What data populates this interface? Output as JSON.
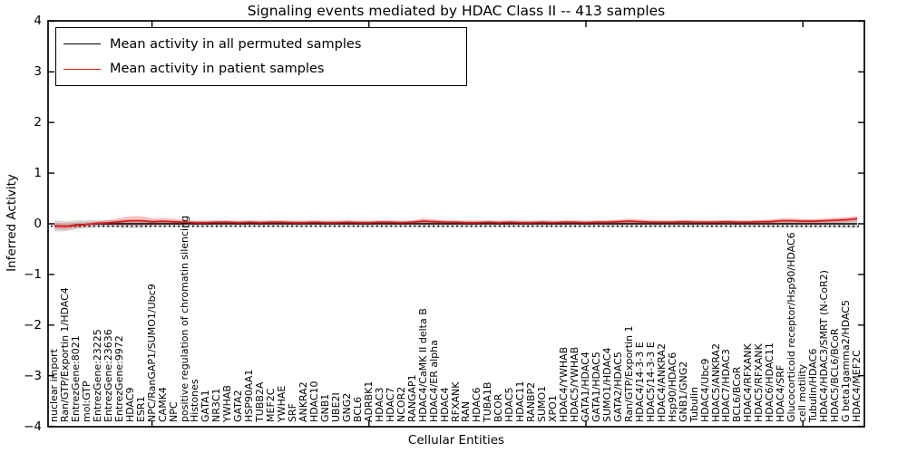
{
  "title": "Signaling events mediated by HDAC Class II -- 413 samples",
  "legend": {
    "items": [
      {
        "label": "Mean activity in all permuted samples",
        "color": "#000000"
      },
      {
        "label": "Mean activity in patient samples",
        "color": "#dd1c1c"
      }
    ]
  },
  "axes": {
    "ylabel": "Inferred Activity",
    "xlabel": "Cellular Entities",
    "yticks": [
      "4",
      "3",
      "2",
      "1",
      "0",
      "−1",
      "−2",
      "−3",
      "−4"
    ]
  },
  "colors": {
    "permuted_line": "#000000",
    "patient_line": "#dd1c1c",
    "permuted_band": "rgba(0,0,0,0.16)",
    "patient_band": "rgba(221,28,28,0.27)"
  },
  "chart_data": {
    "type": "line",
    "title": "Signaling events mediated by HDAC Class II -- 413 samples",
    "xlabel": "Cellular Entities",
    "ylabel": "Inferred Activity",
    "ylim": [
      -4,
      4
    ],
    "grid": false,
    "legend_position": "upper left",
    "xtick_indices": [
      9,
      29,
      49,
      69
    ],
    "categories": [
      "nuclear import",
      "Ran/GTP/Exportin 1/HDAC4",
      "EntrezGene:8021",
      "mol:GTP",
      "EntrezGene:23225",
      "EntrezGene:23636",
      "EntrezGene:9972",
      "HDAC9",
      "ESR1",
      "NPC/RanGAP1/SUMO1/Ubc9",
      "CAMK4",
      "NPC",
      "positive regulation of chromatin silencing",
      "Histones",
      "GATA1",
      "NR3C1",
      "YWHAB",
      "GATA2",
      "HSP90AA1",
      "TUBB2A",
      "MEF2C",
      "YWHAE",
      "SRF",
      "ANKRA2",
      "HDAC10",
      "GNB1",
      "UBE2I",
      "GNG2",
      "BCL6",
      "ADRBK1",
      "HDAC3",
      "HDAC7",
      "NCOR2",
      "RANGAP1",
      "HDAC4/CaMK II delta B",
      "HDAC4/ER alpha",
      "HDAC4",
      "RFXANK",
      "RAN",
      "HDAC6",
      "TUBA1B",
      "BCOR",
      "HDAC5",
      "HDAC11",
      "RANBP2",
      "SUMO1",
      "XPO1",
      "HDAC4/YWHAB",
      "HDAC5/YWHAB",
      "GATA1/HDAC4",
      "GATA1/HDAC5",
      "SUMO1/HDAC4",
      "GATA2/HDAC5",
      "Ran/GTP/Exportin 1",
      "HDAC4/14-3-3 E",
      "HDAC5/14-3-3 E",
      "HDAC4/ANKRA2",
      "Hsp90/HDAC6",
      "GNB1/GNG2",
      "Tubulin",
      "HDAC4/Ubc9",
      "HDAC5/ANKRA2",
      "HDAC7/HDAC3",
      "BCL6/BCoR",
      "HDAC4/RFXANK",
      "HDAC5/RFXANK",
      "HDAC6/HDAC11",
      "HDAC4/SRF",
      "Glucocorticoid receptor/Hsp90/HDAC6",
      "cell motility",
      "Tubulin/HDAC6",
      "HDAC4/HDAC3/SMRT (N-CoR2)",
      "HDAC5/BCL6/BCoR",
      "G beta1gamma2/HDAC5",
      "HDAC4/MEF2C"
    ],
    "series": [
      {
        "name": "Mean activity in all permuted samples",
        "color": "#000000",
        "values": [
          -0.04,
          -0.05,
          -0.02,
          -0.01,
          0,
          0,
          0,
          0,
          0,
          0,
          0,
          0,
          0,
          0,
          0,
          0,
          0,
          0,
          0,
          0,
          0,
          0,
          0,
          0,
          0,
          0,
          0,
          0,
          0,
          0,
          0,
          0,
          0,
          0,
          0,
          0,
          0,
          0,
          0,
          0,
          0,
          0,
          0,
          0,
          0,
          0,
          0,
          0,
          0,
          0,
          0,
          0,
          0,
          0,
          0,
          0,
          0,
          0,
          0,
          0,
          0,
          0,
          0,
          0,
          0,
          0,
          0,
          0,
          0,
          0,
          0,
          0,
          0,
          0,
          0
        ],
        "band_halfwidth": [
          0.11,
          0.1,
          0.09,
          0.08,
          0.07,
          0.07,
          0.08,
          0.08,
          0.08,
          0.07,
          0.065,
          0.065,
          0.065,
          0.065,
          0.065,
          0.065,
          0.065,
          0.065,
          0.065,
          0.065,
          0.065,
          0.065,
          0.065,
          0.065,
          0.065,
          0.065,
          0.065,
          0.065,
          0.065,
          0.065,
          0.065,
          0.065,
          0.065,
          0.065,
          0.075,
          0.07,
          0.065,
          0.065,
          0.065,
          0.065,
          0.065,
          0.065,
          0.065,
          0.065,
          0.065,
          0.065,
          0.065,
          0.065,
          0.065,
          0.065,
          0.065,
          0.065,
          0.07,
          0.07,
          0.07,
          0.065,
          0.065,
          0.065,
          0.065,
          0.065,
          0.065,
          0.065,
          0.065,
          0.065,
          0.065,
          0.065,
          0.075,
          0.075,
          0.075,
          0.075,
          0.075,
          0.075,
          0.08,
          0.08,
          0.09
        ]
      },
      {
        "name": "Mean activity in patient samples",
        "color": "#dd1c1c",
        "values": [
          -0.04,
          -0.05,
          -0.03,
          -0.01,
          0.01,
          0.02,
          0.04,
          0.06,
          0.06,
          0.04,
          0.05,
          0.04,
          0.03,
          0.02,
          0.02,
          0.03,
          0.03,
          0.02,
          0.03,
          0.02,
          0.03,
          0.03,
          0.02,
          0.02,
          0.03,
          0.02,
          0.02,
          0.03,
          0.02,
          0.02,
          0.03,
          0.03,
          0.02,
          0.03,
          0.05,
          0.04,
          0.03,
          0.03,
          0.02,
          0.02,
          0.03,
          0.02,
          0.03,
          0.02,
          0.02,
          0.03,
          0.02,
          0.03,
          0.03,
          0.02,
          0.03,
          0.03,
          0.04,
          0.05,
          0.04,
          0.03,
          0.03,
          0.03,
          0.04,
          0.03,
          0.03,
          0.03,
          0.04,
          0.03,
          0.03,
          0.04,
          0.04,
          0.06,
          0.06,
          0.05,
          0.05,
          0.06,
          0.07,
          0.08,
          0.1
        ],
        "band_halfwidth": [
          0.06,
          0.06,
          0.05,
          0.04,
          0.04,
          0.05,
          0.07,
          0.09,
          0.09,
          0.07,
          0.06,
          0.06,
          0.04,
          0.035,
          0.035,
          0.035,
          0.035,
          0.035,
          0.035,
          0.035,
          0.035,
          0.035,
          0.035,
          0.035,
          0.035,
          0.035,
          0.035,
          0.035,
          0.035,
          0.035,
          0.035,
          0.035,
          0.035,
          0.035,
          0.06,
          0.05,
          0.035,
          0.035,
          0.035,
          0.035,
          0.035,
          0.035,
          0.035,
          0.035,
          0.035,
          0.035,
          0.035,
          0.035,
          0.035,
          0.035,
          0.035,
          0.035,
          0.045,
          0.05,
          0.045,
          0.035,
          0.035,
          0.035,
          0.035,
          0.035,
          0.035,
          0.035,
          0.035,
          0.035,
          0.035,
          0.035,
          0.04,
          0.05,
          0.05,
          0.045,
          0.04,
          0.045,
          0.05,
          0.05,
          0.055
        ]
      }
    ]
  }
}
